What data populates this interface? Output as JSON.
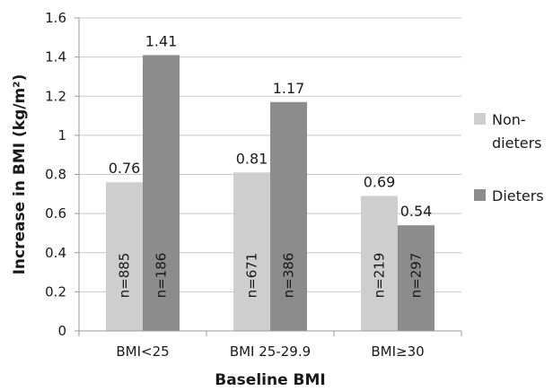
{
  "chart_data": {
    "type": "bar",
    "xlabel": "Baseline BMI",
    "ylabel": "Increase in BMI (kg/m²)",
    "ylim": [
      0,
      1.6
    ],
    "ytick_step": 0.2,
    "yticks": [
      "0",
      "0.2",
      "0.4",
      "0.6",
      "0.8",
      "1",
      "1.2",
      "1.4",
      "1.6"
    ],
    "grid": true,
    "legend_position": "right",
    "categories": [
      "BMI<25",
      "BMI 25-29.9",
      "BMI≥30"
    ],
    "series": [
      {
        "name": "Non-dieters",
        "legend_lines": [
          "Non-",
          "dieters"
        ],
        "color": "#cecece",
        "values": [
          0.76,
          0.81,
          0.69
        ],
        "value_labels": [
          "0.76",
          "0.81",
          "0.69"
        ],
        "n_labels": [
          "n=885",
          "n=671",
          "n=219"
        ]
      },
      {
        "name": "Dieters",
        "legend_lines": [
          "Dieters"
        ],
        "color": "#8c8c8c",
        "values": [
          1.41,
          1.17,
          0.54
        ],
        "value_labels": [
          "1.41",
          "1.17",
          "0.54"
        ],
        "n_labels": [
          "n=186",
          "n=386",
          "n=297"
        ]
      }
    ]
  }
}
